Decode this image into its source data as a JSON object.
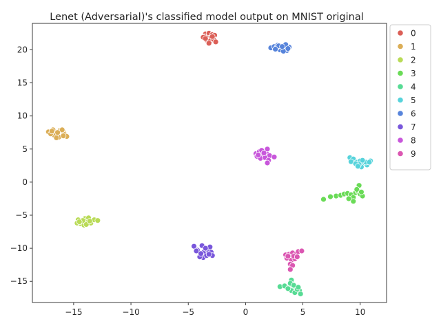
{
  "chart_data": {
    "type": "scatter",
    "title": "Lenet (Adversarial)'s classified model output on MNIST original",
    "xlabel": "",
    "ylabel": "",
    "xlim": [
      -18.6,
      12.3
    ],
    "ylim": [
      -18.2,
      24.0
    ],
    "xticks": [
      -15,
      -10,
      -5,
      0,
      5,
      10
    ],
    "yticks": [
      -15,
      -10,
      -5,
      0,
      5,
      10,
      15,
      20
    ],
    "xtick_labels": [
      "−15",
      "−10",
      "−5",
      "0",
      "5",
      "10"
    ],
    "ytick_labels": [
      "−15",
      "−10",
      "−5",
      "0",
      "5",
      "10",
      "15",
      "20"
    ],
    "grid": false,
    "legend_position": "outside-right",
    "series": [
      {
        "name": "0",
        "color": "#db5f57",
        "points": [
          [
            -3.5,
            22.4
          ],
          [
            -3.2,
            22.5
          ],
          [
            -2.9,
            22.3
          ],
          [
            -3.6,
            22.0
          ],
          [
            -3.3,
            21.8
          ],
          [
            -3.0,
            21.9
          ],
          [
            -2.7,
            22.2
          ],
          [
            -3.4,
            21.5
          ],
          [
            -3.1,
            21.3
          ],
          [
            -2.8,
            21.6
          ],
          [
            -3.7,
            21.9
          ],
          [
            -2.6,
            21.2
          ],
          [
            -3.2,
            21.0
          ],
          [
            -2.9,
            22.0
          ],
          [
            -3.5,
            21.7
          ]
        ]
      },
      {
        "name": "1",
        "color": "#dbae57",
        "points": [
          [
            -17.2,
            7.6
          ],
          [
            -16.8,
            7.9
          ],
          [
            -16.5,
            7.4
          ],
          [
            -16.2,
            7.8
          ],
          [
            -15.9,
            7.6
          ],
          [
            -16.7,
            7.1
          ],
          [
            -16.3,
            6.8
          ],
          [
            -15.8,
            7.2
          ],
          [
            -15.6,
            6.9
          ],
          [
            -17.0,
            7.3
          ],
          [
            -16.0,
            7.9
          ],
          [
            -16.5,
            6.7
          ],
          [
            -15.9,
            7.0
          ],
          [
            -16.9,
            7.7
          ],
          [
            -16.4,
            7.5
          ]
        ]
      },
      {
        "name": "2",
        "color": "#b9db57",
        "points": [
          [
            -14.6,
            -5.7
          ],
          [
            -14.3,
            -5.9
          ],
          [
            -14.0,
            -5.5
          ],
          [
            -13.7,
            -5.4
          ],
          [
            -14.4,
            -6.3
          ],
          [
            -14.1,
            -6.5
          ],
          [
            -13.8,
            -6.1
          ],
          [
            -13.5,
            -6.2
          ],
          [
            -13.2,
            -5.7
          ],
          [
            -12.9,
            -5.8
          ],
          [
            -14.7,
            -6.2
          ],
          [
            -13.9,
            -6.4
          ],
          [
            -14.2,
            -5.8
          ],
          [
            -13.6,
            -5.9
          ],
          [
            -14.5,
            -6.0
          ]
        ]
      },
      {
        "name": "3",
        "color": "#6adb57",
        "points": [
          [
            6.8,
            -2.6
          ],
          [
            7.4,
            -2.2
          ],
          [
            7.9,
            -2.1
          ],
          [
            8.3,
            -2.0
          ],
          [
            8.6,
            -1.8
          ],
          [
            8.9,
            -1.7
          ],
          [
            9.2,
            -1.9
          ],
          [
            9.4,
            -2.3
          ],
          [
            9.6,
            -1.6
          ],
          [
            9.8,
            -1.4
          ],
          [
            10.0,
            -1.8
          ],
          [
            10.2,
            -2.1
          ],
          [
            9.9,
            -0.5
          ],
          [
            9.4,
            -2.9
          ],
          [
            9.7,
            -1.1
          ],
          [
            10.1,
            -1.5
          ],
          [
            9.0,
            -2.5
          ]
        ]
      },
      {
        "name": "4",
        "color": "#57db94",
        "points": [
          [
            3.0,
            -15.8
          ],
          [
            3.4,
            -15.7
          ],
          [
            3.8,
            -15.9
          ],
          [
            4.1,
            -15.5
          ],
          [
            4.4,
            -16.0
          ],
          [
            4.0,
            -16.4
          ],
          [
            4.3,
            -16.7
          ],
          [
            4.7,
            -16.4
          ],
          [
            4.8,
            -16.9
          ],
          [
            4.0,
            -14.8
          ],
          [
            3.9,
            -15.3
          ],
          [
            4.5,
            -16.2
          ],
          [
            4.2,
            -15.6
          ],
          [
            3.7,
            -16.1
          ],
          [
            4.6,
            -15.9
          ]
        ]
      },
      {
        "name": "5",
        "color": "#57d3db",
        "points": [
          [
            9.1,
            3.7
          ],
          [
            9.4,
            3.5
          ],
          [
            9.7,
            3.0
          ],
          [
            10.0,
            3.2
          ],
          [
            10.3,
            2.9
          ],
          [
            10.6,
            2.6
          ],
          [
            10.9,
            3.2
          ],
          [
            10.1,
            2.3
          ],
          [
            9.9,
            2.7
          ],
          [
            9.2,
            3.1
          ],
          [
            10.5,
            3.0
          ],
          [
            9.6,
            2.8
          ],
          [
            10.8,
            3.0
          ],
          [
            10.2,
            3.3
          ],
          [
            9.8,
            2.4
          ]
        ]
      },
      {
        "name": "6",
        "color": "#5784db",
        "points": [
          [
            2.2,
            20.3
          ],
          [
            2.5,
            20.5
          ],
          [
            2.8,
            20.7
          ],
          [
            3.1,
            20.2
          ],
          [
            3.4,
            20.6
          ],
          [
            3.6,
            19.9
          ],
          [
            3.8,
            20.4
          ],
          [
            3.0,
            20.0
          ],
          [
            2.7,
            20.3
          ],
          [
            3.3,
            19.8
          ],
          [
            3.5,
            20.8
          ],
          [
            2.9,
            20.6
          ],
          [
            3.2,
            20.5
          ],
          [
            2.6,
            20.1
          ],
          [
            3.7,
            20.2
          ]
        ]
      },
      {
        "name": "7",
        "color": "#7957db",
        "points": [
          [
            -4.5,
            -9.7
          ],
          [
            -4.2,
            -10.3
          ],
          [
            -3.9,
            -11.0
          ],
          [
            -3.6,
            -10.5
          ],
          [
            -3.3,
            -10.2
          ],
          [
            -3.0,
            -10.6
          ],
          [
            -3.7,
            -11.4
          ],
          [
            -3.4,
            -11.1
          ],
          [
            -3.1,
            -9.8
          ],
          [
            -3.8,
            -9.6
          ],
          [
            -4.0,
            -11.3
          ],
          [
            -2.9,
            -11.1
          ],
          [
            -3.5,
            -10.0
          ],
          [
            -3.2,
            -10.9
          ],
          [
            -4.3,
            -10.4
          ],
          [
            -3.9,
            -10.8
          ]
        ]
      },
      {
        "name": "8",
        "color": "#c857db",
        "points": [
          [
            0.9,
            4.3
          ],
          [
            1.2,
            4.6
          ],
          [
            1.5,
            4.2
          ],
          [
            1.8,
            4.5
          ],
          [
            2.1,
            4.0
          ],
          [
            1.0,
            3.9
          ],
          [
            1.3,
            3.6
          ],
          [
            1.7,
            3.7
          ],
          [
            2.0,
            3.3
          ],
          [
            1.9,
            2.9
          ],
          [
            2.5,
            3.8
          ],
          [
            1.4,
            4.8
          ],
          [
            1.9,
            5.0
          ],
          [
            1.1,
            4.1
          ],
          [
            1.6,
            4.4
          ]
        ]
      },
      {
        "name": "9",
        "color": "#db57b2",
        "points": [
          [
            3.5,
            -11.0
          ],
          [
            3.8,
            -10.9
          ],
          [
            4.1,
            -10.7
          ],
          [
            4.4,
            -10.9
          ],
          [
            4.6,
            -10.5
          ],
          [
            4.9,
            -10.4
          ],
          [
            3.6,
            -11.5
          ],
          [
            4.0,
            -11.8
          ],
          [
            4.3,
            -11.6
          ],
          [
            3.9,
            -12.4
          ],
          [
            4.1,
            -12.6
          ],
          [
            3.9,
            -13.2
          ],
          [
            4.2,
            -11.2
          ],
          [
            3.7,
            -11.2
          ],
          [
            4.5,
            -11.3
          ]
        ]
      }
    ]
  }
}
